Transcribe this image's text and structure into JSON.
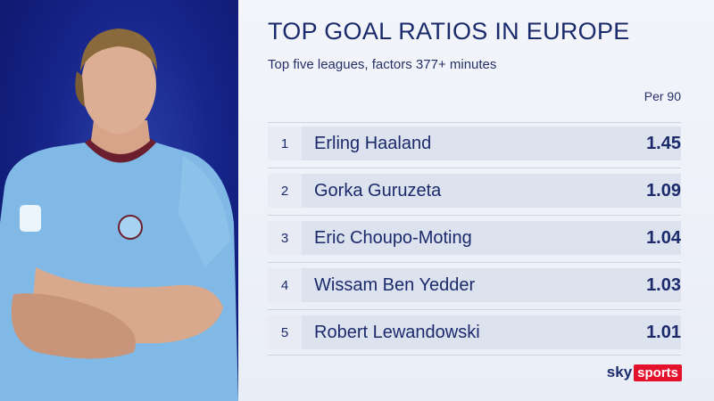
{
  "header": {
    "title": "TOP GOAL RATIOS IN EUROPE",
    "subtitle": "Top five leagues, factors 377+ minutes",
    "column_label": "Per 90"
  },
  "rows": [
    {
      "rank": "1",
      "name": "Erling Haaland",
      "value": "1.45"
    },
    {
      "rank": "2",
      "name": "Gorka Guruzeta",
      "value": "1.09"
    },
    {
      "rank": "3",
      "name": "Eric Choupo-Moting",
      "value": "1.04"
    },
    {
      "rank": "4",
      "name": "Wissam Ben Yedder",
      "value": "1.03"
    },
    {
      "rank": "5",
      "name": "Robert Lewandowski",
      "value": "1.01"
    }
  ],
  "branding": {
    "sky": "sky",
    "sports": "sports"
  },
  "photo": {
    "subject": "player-photo",
    "shirt_color": "#7fb8e6",
    "background_color": "#17258a"
  }
}
